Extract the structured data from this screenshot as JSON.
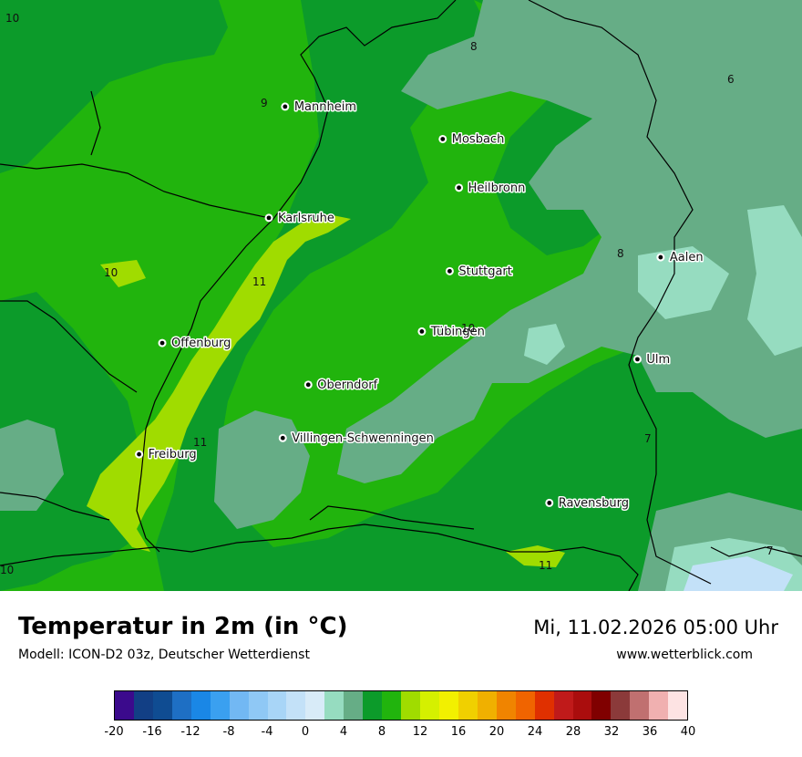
{
  "title": "Temperatur in 2m (in °C)",
  "subtitle": "Modell: ICON-D2 03z, Deutscher Wetterdienst",
  "datetime": "Mi, 11.02.2026 05:00 Uhr",
  "website": "www.wetterblick.com",
  "cities": [
    {
      "name": "Mannheim",
      "lat": 49.49,
      "lon": 8.47
    },
    {
      "name": "Mosbach",
      "lat": 49.35,
      "lon": 9.15
    },
    {
      "name": "Heilbronn",
      "lat": 49.14,
      "lon": 9.22
    },
    {
      "name": "Karlsruhe",
      "lat": 49.01,
      "lon": 8.4
    },
    {
      "name": "Aalen",
      "lat": 48.84,
      "lon": 10.09
    },
    {
      "name": "Stuttgart",
      "lat": 48.78,
      "lon": 9.18
    },
    {
      "name": "Tübingen",
      "lat": 48.52,
      "lon": 9.06
    },
    {
      "name": "Offenburg",
      "lat": 48.47,
      "lon": 7.94
    },
    {
      "name": "Ulm",
      "lat": 48.4,
      "lon": 9.99
    },
    {
      "name": "Oberndorf",
      "lat": 48.29,
      "lon": 8.57
    },
    {
      "name": "Villingen-Schwenningen",
      "lat": 48.06,
      "lon": 8.46
    },
    {
      "name": "Freiburg",
      "lat": 47.99,
      "lon": 7.84
    },
    {
      "name": "Ravensburg",
      "lat": 47.78,
      "lon": 9.61
    }
  ],
  "isotherm_labels": [
    "10",
    "8",
    "9",
    "6",
    "10",
    "11",
    "8",
    "10",
    "11",
    "7",
    "10",
    "11",
    "7"
  ],
  "legend": {
    "unit": "°C",
    "ticks": [
      "-20",
      "-16",
      "-12",
      "-8",
      "-4",
      "0",
      "4",
      "8",
      "12",
      "16",
      "20",
      "24",
      "28",
      "32",
      "36",
      "40"
    ],
    "colors": [
      "#3b0a8c",
      "#123f85",
      "#0f4c92",
      "#1e6fc4",
      "#1a87e6",
      "#3aa0f0",
      "#72b8f3",
      "#8fc8f5",
      "#a8d5f7",
      "#c3e1f8",
      "#d8ebf8",
      "#96dcc0",
      "#66ad86",
      "#0c9b2a",
      "#21b40d",
      "#a0dc00",
      "#d5f000",
      "#f2f000",
      "#f0d000",
      "#f0b000",
      "#f08400",
      "#f06400",
      "#e03000",
      "#c01a1a",
      "#aa0d0d",
      "#800000",
      "#8b3a3a",
      "#c07070",
      "#f0b0b0",
      "#fde3e3"
    ]
  },
  "map_colors": {
    "c4_6": "#66ad86",
    "c6_8": "#0c9b2a",
    "c8_10": "#21b40d",
    "c10_12": "#a0dc00",
    "c2_4": "#96dcc0",
    "c0_2": "#c3e1f8",
    "border": "#000000"
  }
}
